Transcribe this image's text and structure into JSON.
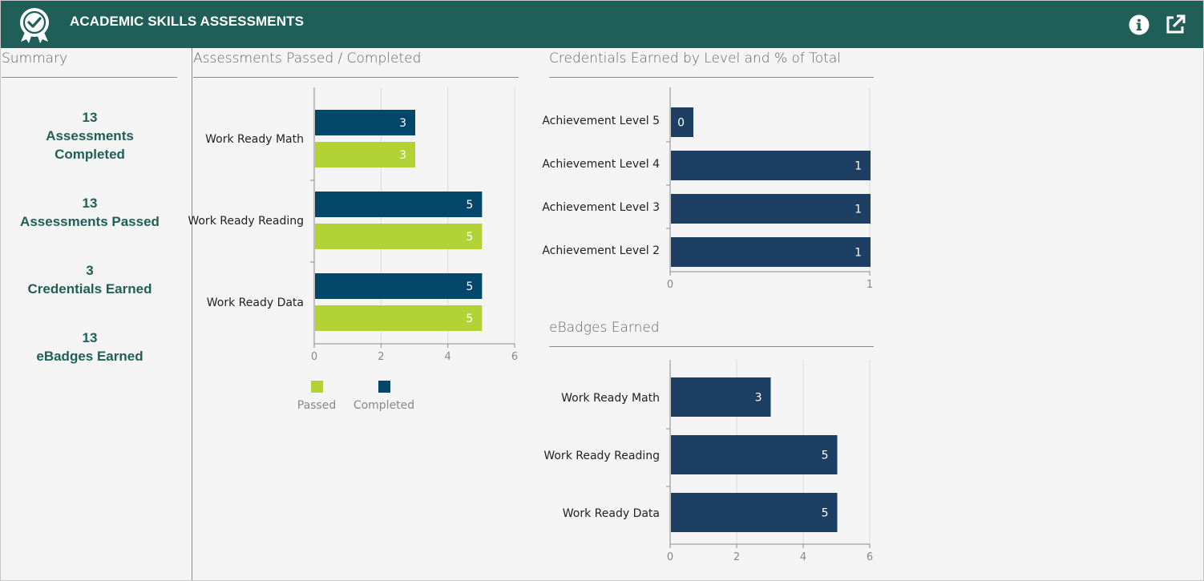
{
  "header": {
    "title": "ACADEMIC SKILLS ASSESSMENTS",
    "logo_icon": "award-ribbon-check-icon",
    "info_icon": "info-circle-icon",
    "popout_icon": "external-link-icon",
    "background": "#1f5f57"
  },
  "summary": {
    "title": "Summary",
    "items": [
      {
        "value": "13",
        "label_line1": "Assessments",
        "label_line2": "Completed"
      },
      {
        "value": "13",
        "label_line1": "Assessments Passed",
        "label_line2": ""
      },
      {
        "value": "3",
        "label_line1": "Credentials Earned",
        "label_line2": ""
      },
      {
        "value": "13",
        "label_line1": "eBadges Earned",
        "label_line2": ""
      }
    ]
  },
  "sections": {
    "passed_completed": "Assessments Passed / Completed",
    "credentials": "Credentials Earned by Level and % of Total",
    "ebadges": "eBadges Earned"
  },
  "chart_data": [
    {
      "id": "passed_completed",
      "type": "bar",
      "orientation": "horizontal",
      "title": "Assessments Passed / Completed",
      "categories": [
        "Work Ready Math",
        "Work Ready Reading",
        "Work Ready Data"
      ],
      "series": [
        {
          "name": "Completed",
          "values": [
            3,
            5,
            5
          ],
          "color": "#02476a"
        },
        {
          "name": "Passed",
          "values": [
            3,
            5,
            5
          ],
          "color": "#b2d235"
        }
      ],
      "xlim": [
        0,
        6
      ],
      "xticks": [
        0,
        2,
        4,
        6
      ],
      "grid": true,
      "legend": "bottom",
      "legend_order": [
        "Passed",
        "Completed"
      ]
    },
    {
      "id": "credentials",
      "type": "bar",
      "orientation": "horizontal",
      "title": "Credentials Earned by Level and % of Total",
      "categories": [
        "Achievement Level 5",
        "Achievement Level 4",
        "Achievement Level 3",
        "Achievement Level 2"
      ],
      "values": [
        0,
        1,
        1,
        1
      ],
      "color": "#1d3f63",
      "xlim": [
        0,
        1
      ],
      "xticks": [
        0,
        1
      ],
      "grid": true
    },
    {
      "id": "ebadges",
      "type": "bar",
      "orientation": "horizontal",
      "title": "eBadges Earned",
      "categories": [
        "Work Ready Math",
        "Work Ready Reading",
        "Work Ready Data"
      ],
      "values": [
        3,
        5,
        5
      ],
      "color": "#1d3f63",
      "xlim": [
        0,
        6
      ],
      "xticks": [
        0,
        2,
        4,
        6
      ],
      "grid": true
    }
  ]
}
